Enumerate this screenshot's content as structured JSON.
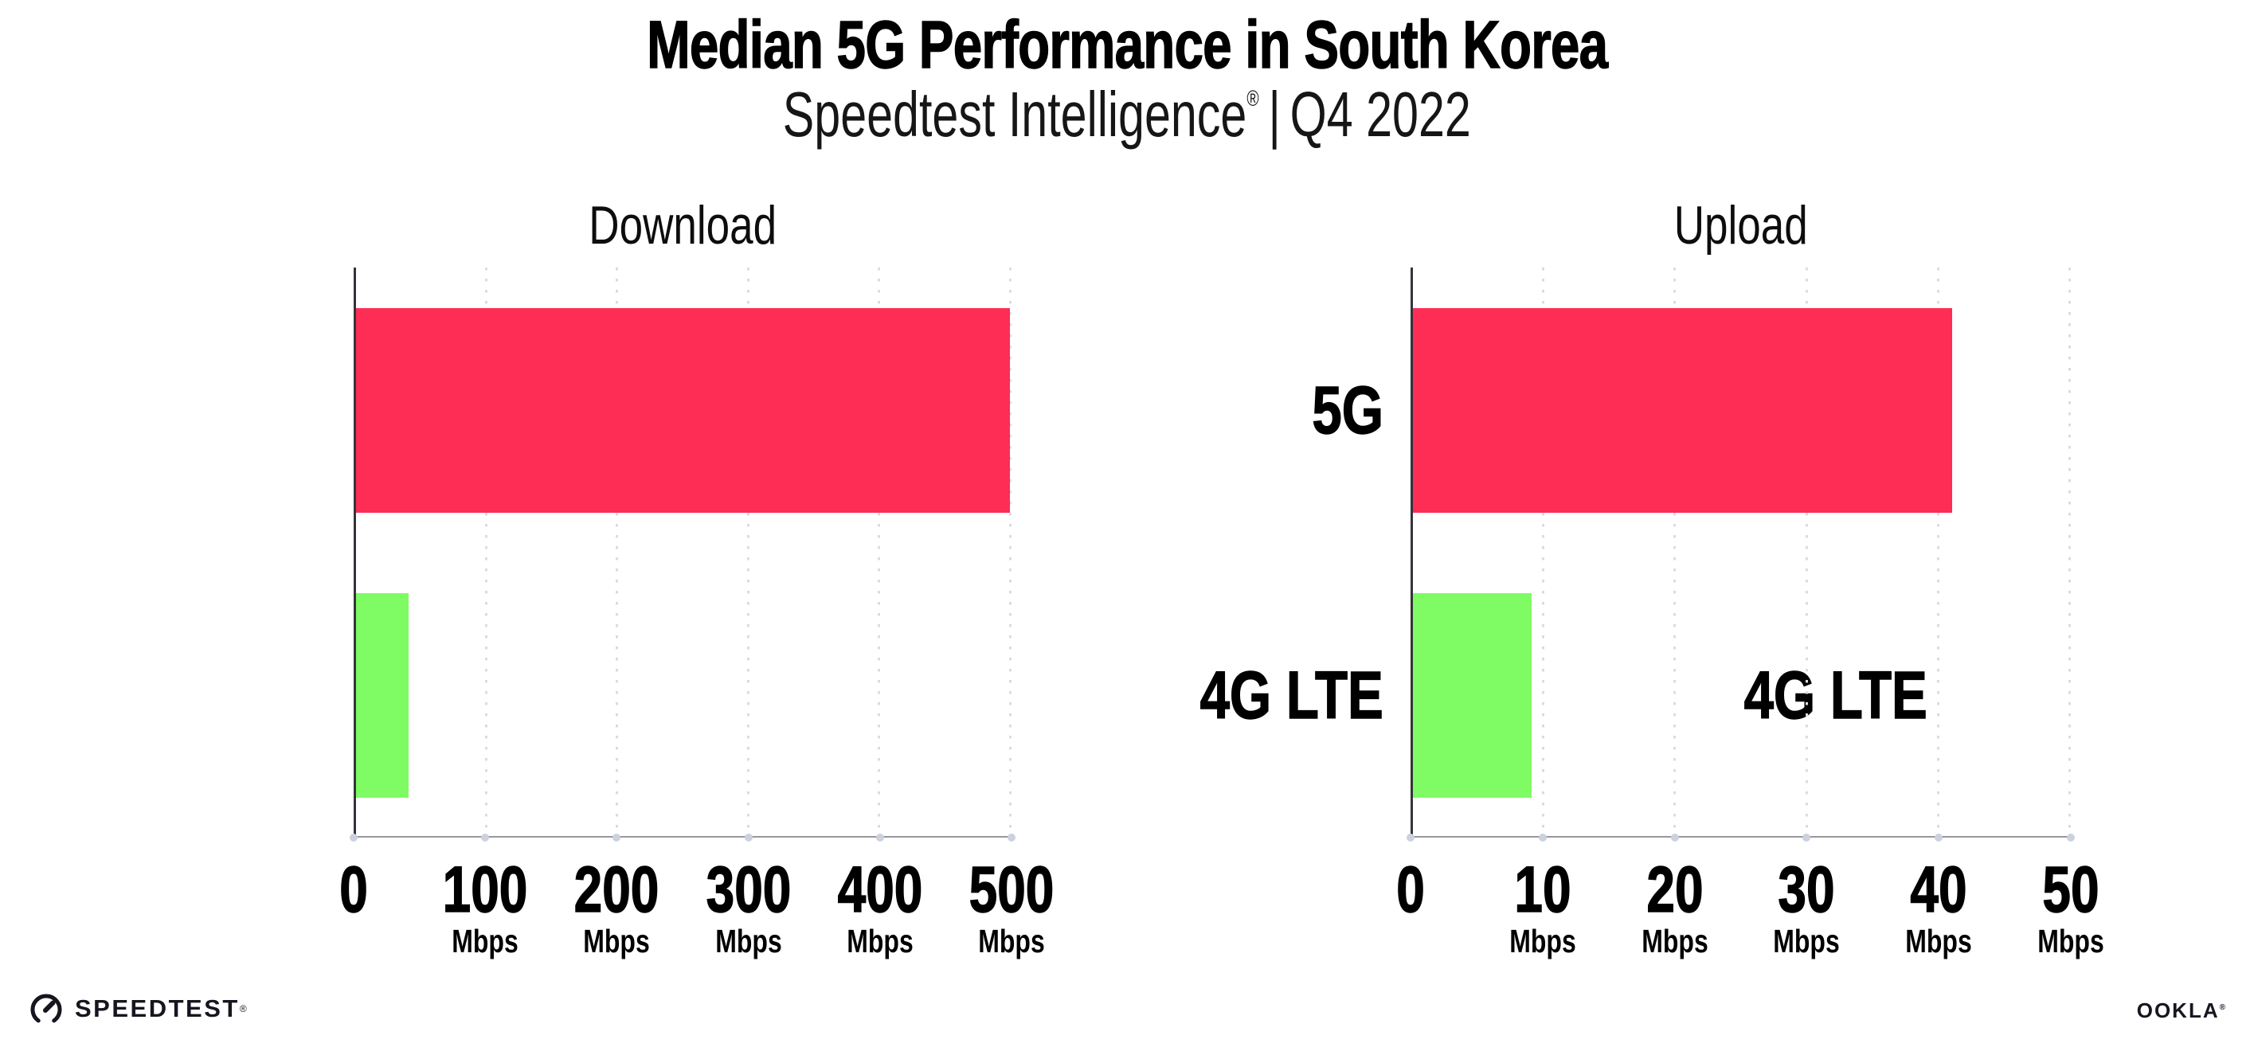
{
  "header": {
    "title": "Median 5G Performance in South Korea",
    "subtitle_brand": "Speedtest Intelligence",
    "subtitle_reg": "®",
    "subtitle_sep": "|",
    "subtitle_period": "Q4 2022"
  },
  "colors": {
    "bar_5g": "#FD2D55",
    "bar_4g_lte": "#7FFB63",
    "gridline": "#dadce4",
    "y_axis": "#33343b",
    "x_axis": "#97979c",
    "axis_dot": "#ccd1de",
    "text": "#000000"
  },
  "chart_data": [
    {
      "type": "bar",
      "orientation": "horizontal",
      "title": "Download",
      "categories": [
        "5G",
        "4G LTE"
      ],
      "values": [
        499,
        40
      ],
      "unit": "Mbps",
      "xlim": [
        0,
        500
      ],
      "xticks": [
        0,
        100,
        200,
        300,
        400,
        500
      ],
      "xtick_unit_label": "Mbps",
      "bar_colors": [
        "#FD2D55",
        "#7FFB63"
      ],
      "grid": "dotted-vertical",
      "legend": "none"
    },
    {
      "type": "bar",
      "orientation": "horizontal",
      "title": "Upload",
      "categories": [
        "5G",
        "4G LTE"
      ],
      "values": [
        41,
        9
      ],
      "unit": "Mbps",
      "xlim": [
        0,
        50
      ],
      "xticks": [
        0,
        10,
        20,
        30,
        40,
        50
      ],
      "xtick_unit_label": "Mbps",
      "bar_colors": [
        "#FD2D55",
        "#7FFB63"
      ],
      "grid": "dotted-vertical",
      "legend": "none"
    }
  ],
  "footer": {
    "speedtest_label": "SPEEDTEST",
    "speedtest_mark": "®",
    "ookla_label": "OOKLA",
    "ookla_mark": "®"
  }
}
